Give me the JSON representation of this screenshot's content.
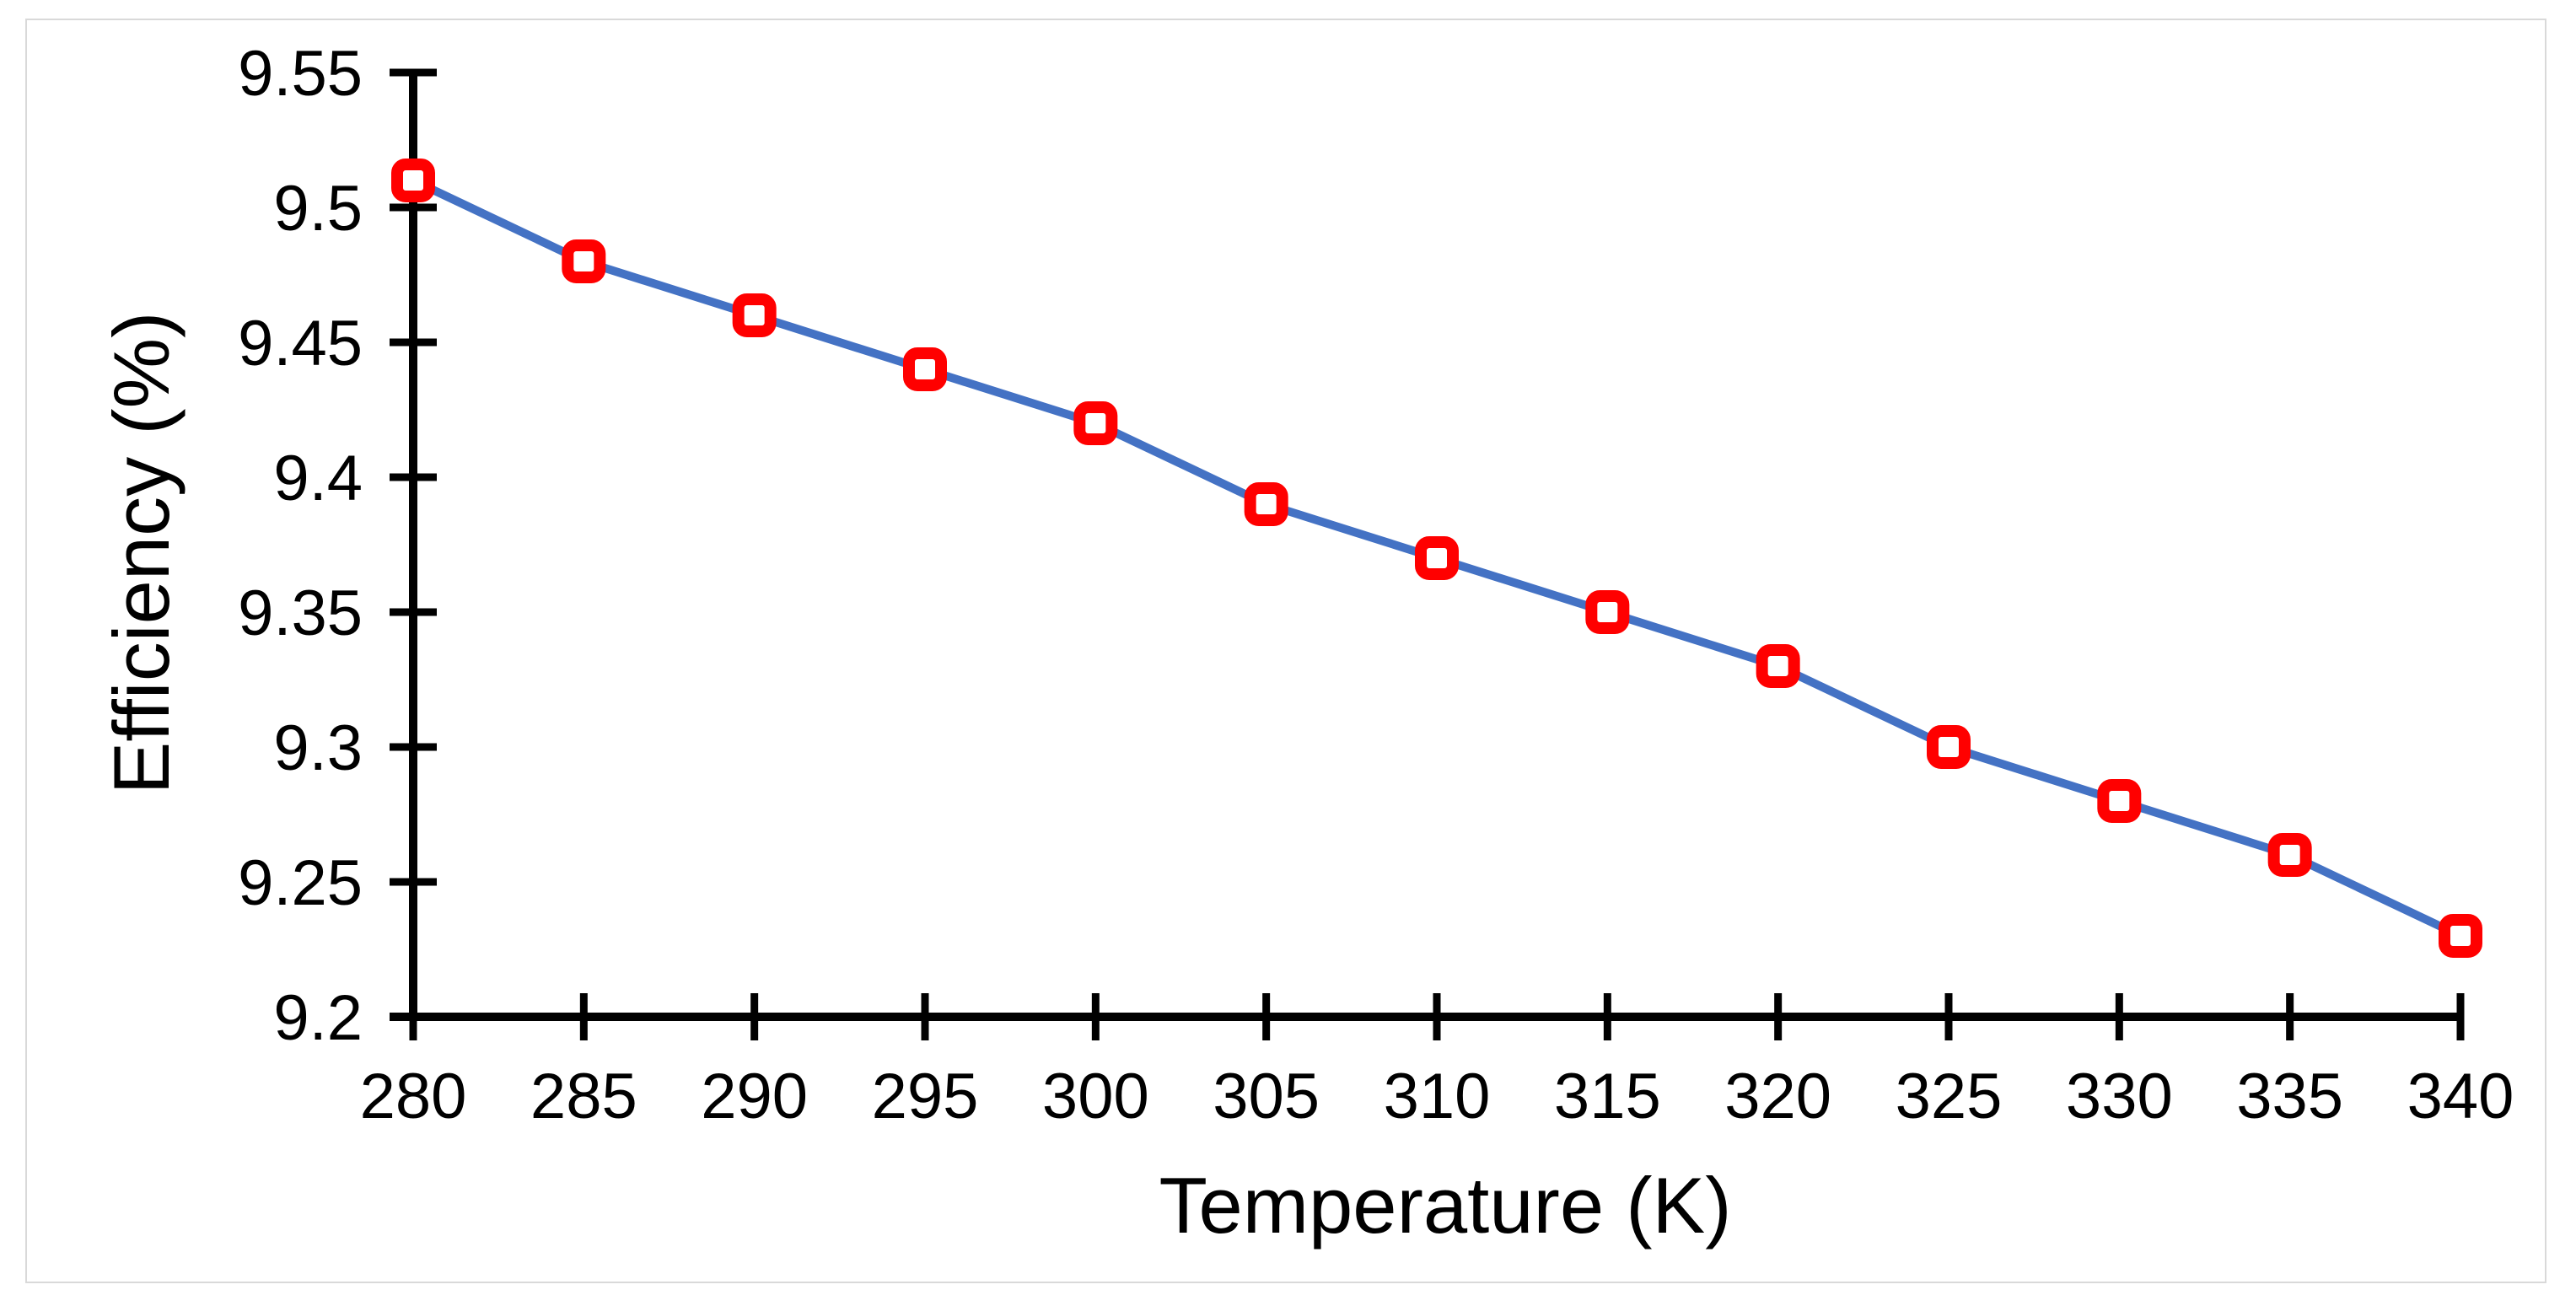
{
  "chart_data": {
    "type": "line",
    "title": "",
    "xlabel": "Temperature  (K)",
    "ylabel": "Efficiency (%)",
    "x": [
      280,
      285,
      290,
      295,
      300,
      305,
      310,
      315,
      320,
      325,
      330,
      335,
      340
    ],
    "series": [
      {
        "name": "Efficiency",
        "values": [
          9.51,
          9.48,
          9.46,
          9.44,
          9.42,
          9.39,
          9.37,
          9.35,
          9.33,
          9.3,
          9.28,
          9.26,
          9.23
        ]
      }
    ],
    "xlim": [
      280,
      340
    ],
    "ylim": [
      9.2,
      9.55
    ],
    "xticks": [
      "280",
      "285",
      "290",
      "295",
      "300",
      "305",
      "310",
      "315",
      "320",
      "325",
      "330",
      "335",
      "340"
    ],
    "yticks": [
      "9.2",
      "9.25",
      "9.3",
      "9.35",
      "9.4",
      "9.45",
      "9.5",
      "9.55"
    ],
    "grid": false,
    "legend": "none",
    "colors": {
      "line": "#4472c4",
      "marker": "#ff0000",
      "marker_center": "#ffffff",
      "axis": "#000000"
    }
  }
}
